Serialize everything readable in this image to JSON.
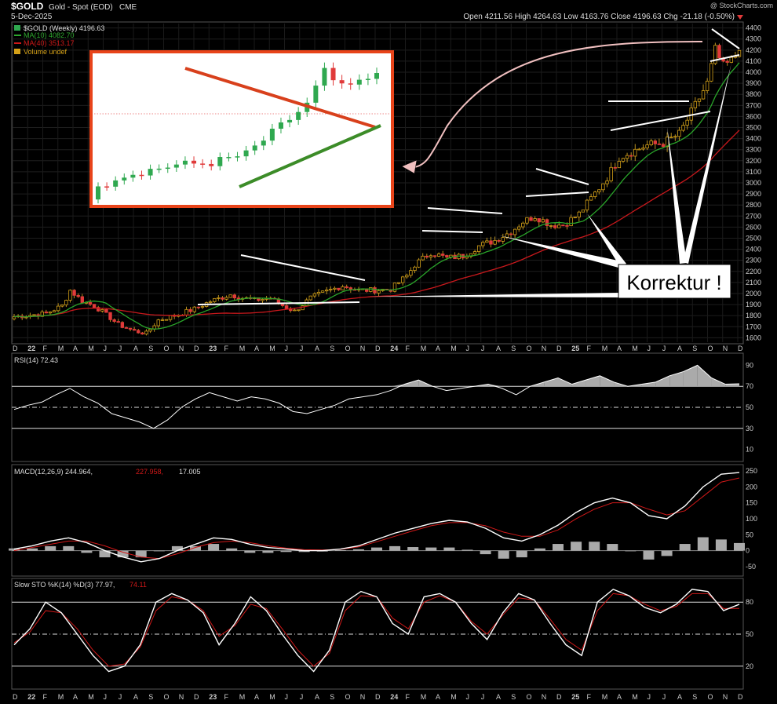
{
  "header": {
    "symbol": "$GOLD",
    "name": "Gold - Spot (EOD)",
    "exchange": "CME",
    "date": "5-Dec-2025",
    "watermark": "@ StockCharts.com",
    "ohlc_text": "Open 4211.56  High 4264.63  Low 4163.76  Close 4196.63  Chg -21.18 (-0.50%)"
  },
  "legend": {
    "main": "$GOLD (Weekly) 4196.63",
    "ma10": "MA(10) 4082.70",
    "ma40": "MA(40) 3513.17",
    "volume": "Volume undef"
  },
  "annotation": {
    "callout": "Korrektur !"
  },
  "indicators": {
    "rsi_label": "RSI(14) 72.43",
    "macd_label_a": "MACD(12,26,9) 244.964,",
    "macd_label_b": "227.958,",
    "macd_label_c": "17.005",
    "sto_label_a": "Slow STO %K(14) %D(3) 77.97,",
    "sto_label_b": "74.11"
  },
  "colors": {
    "background": "#000000",
    "up_candle": "#2fa84f",
    "down_candle": "#e03a3a",
    "ma10": "#2ea82e",
    "ma40": "#d01818",
    "trendlines": "#ffffff",
    "inset_border": "#e8441a",
    "inset_resistance": "#d8401c",
    "inset_support": "#3c8c28",
    "grid": "#2a2a2a"
  },
  "chart_data": [
    {
      "type": "candlestick",
      "title": "$GOLD Gold - Spot (EOD) Weekly",
      "x_ticks": [
        "D",
        "22",
        "F",
        "M",
        "A",
        "M",
        "J",
        "J",
        "A",
        "S",
        "O",
        "N",
        "D",
        "23",
        "F",
        "M",
        "A",
        "M",
        "J",
        "J",
        "A",
        "S",
        "O",
        "N",
        "D",
        "24",
        "F",
        "M",
        "A",
        "M",
        "J",
        "J",
        "A",
        "S",
        "O",
        "N",
        "D",
        "25",
        "F",
        "M",
        "A",
        "M",
        "J",
        "J",
        "A",
        "S",
        "O",
        "N",
        "D"
      ],
      "y_ticks": [
        1600,
        1700,
        1800,
        1900,
        2000,
        2100,
        2200,
        2300,
        2400,
        2500,
        2600,
        2700,
        2800,
        2900,
        3000,
        3100,
        3200,
        3300,
        3400,
        3500,
        3600,
        3700,
        3800,
        3900,
        4000,
        4100,
        4200,
        4300,
        4400
      ],
      "ylim": [
        1560,
        4440
      ],
      "close_path": [
        [
          0,
          1790
        ],
        [
          8,
          1820
        ],
        [
          12,
          1890
        ],
        [
          14,
          2030
        ],
        [
          17,
          1930
        ],
        [
          20,
          1890
        ],
        [
          24,
          1780
        ],
        [
          26,
          1720
        ],
        [
          30,
          1660
        ],
        [
          33,
          1640
        ],
        [
          36,
          1760
        ],
        [
          40,
          1800
        ],
        [
          45,
          1860
        ],
        [
          49,
          1930
        ],
        [
          54,
          1990
        ],
        [
          57,
          1960
        ],
        [
          60,
          1940
        ],
        [
          64,
          1960
        ],
        [
          66,
          1910
        ],
        [
          70,
          1840
        ],
        [
          74,
          1960
        ],
        [
          78,
          2020
        ],
        [
          82,
          2070
        ],
        [
          86,
          2030
        ],
        [
          90,
          2030
        ],
        [
          94,
          2040
        ],
        [
          98,
          2160
        ],
        [
          100,
          2260
        ],
        [
          104,
          2370
        ],
        [
          108,
          2320
        ],
        [
          112,
          2340
        ],
        [
          116,
          2430
        ],
        [
          120,
          2480
        ],
        [
          124,
          2560
        ],
        [
          127,
          2650
        ],
        [
          130,
          2700
        ],
        [
          134,
          2620
        ],
        [
          137,
          2620
        ],
        [
          141,
          2720
        ],
        [
          144,
          2860
        ],
        [
          148,
          3050
        ],
        [
          151,
          3230
        ],
        [
          154,
          3280
        ],
        [
          158,
          3340
        ],
        [
          162,
          3360
        ],
        [
          166,
          3440
        ],
        [
          170,
          3700
        ],
        [
          173,
          3900
        ],
        [
          175,
          4200
        ],
        [
          177,
          4050
        ],
        [
          179,
          4100
        ],
        [
          181,
          4196.63
        ]
      ],
      "ma10_label": "MA(10) 4082.70",
      "ma40_label": "MA(40) 3513.17"
    },
    {
      "type": "line",
      "title": "RSI(14) 72.43",
      "y_ticks": [
        10,
        30,
        50,
        70,
        90
      ],
      "ylim": [
        0,
        100
      ],
      "values": [
        48,
        52,
        55,
        62,
        68,
        60,
        54,
        44,
        40,
        36,
        30,
        38,
        50,
        58,
        64,
        60,
        56,
        60,
        58,
        54,
        46,
        44,
        48,
        52,
        58,
        60,
        62,
        66,
        72,
        76,
        70,
        66,
        68,
        70,
        72,
        68,
        62,
        70,
        74,
        78,
        72,
        76,
        80,
        74,
        70,
        72,
        74,
        80,
        84,
        90,
        78,
        72,
        72.43
      ]
    },
    {
      "type": "line",
      "title": "MACD(12,26,9)",
      "y_ticks": [
        -50,
        0,
        50,
        100,
        150,
        200,
        250
      ],
      "ylim": [
        -70,
        260
      ],
      "macd": [
        5,
        15,
        30,
        40,
        25,
        0,
        -20,
        -35,
        -25,
        0,
        20,
        40,
        35,
        20,
        10,
        5,
        0,
        0,
        5,
        15,
        35,
        55,
        70,
        85,
        95,
        90,
        70,
        40,
        30,
        50,
        80,
        120,
        150,
        165,
        150,
        110,
        100,
        140,
        200,
        240,
        244.964
      ],
      "signal": [
        0,
        10,
        20,
        30,
        30,
        15,
        -5,
        -20,
        -25,
        -10,
        10,
        25,
        30,
        25,
        15,
        8,
        3,
        2,
        4,
        12,
        28,
        45,
        62,
        78,
        88,
        88,
        78,
        58,
        45,
        45,
        65,
        100,
        130,
        150,
        150,
        130,
        112,
        125,
        170,
        215,
        227.958
      ],
      "histogram_last": 17.005
    },
    {
      "type": "line",
      "title": "Slow STO %K(14) %D(3)",
      "y_ticks": [
        20,
        50,
        80
      ],
      "ylim": [
        0,
        100
      ],
      "k": [
        40,
        55,
        80,
        70,
        50,
        30,
        15,
        20,
        40,
        80,
        88,
        82,
        70,
        40,
        60,
        85,
        72,
        50,
        30,
        15,
        35,
        80,
        90,
        85,
        60,
        50,
        85,
        88,
        80,
        60,
        45,
        70,
        88,
        82,
        60,
        40,
        30,
        80,
        92,
        86,
        75,
        70,
        78,
        92,
        90,
        72,
        77.97
      ],
      "d": [
        42,
        52,
        72,
        70,
        55,
        35,
        20,
        22,
        38,
        72,
        85,
        82,
        72,
        48,
        58,
        78,
        74,
        55,
        35,
        20,
        32,
        72,
        86,
        85,
        65,
        55,
        80,
        86,
        80,
        62,
        50,
        68,
        84,
        82,
        64,
        45,
        35,
        72,
        88,
        86,
        78,
        72,
        76,
        88,
        88,
        74,
        74.11
      ]
    }
  ]
}
